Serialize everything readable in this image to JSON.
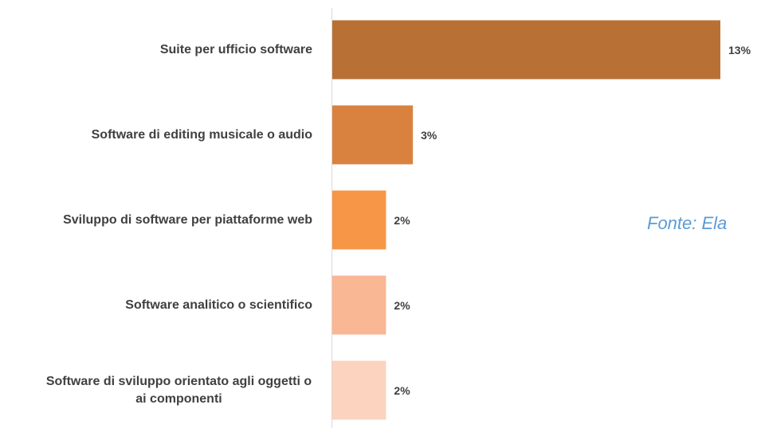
{
  "chart_data": {
    "type": "bar",
    "orientation": "horizontal",
    "categories": [
      "Suite per ufficio software",
      "Software di editing musicale o audio",
      "Sviluppo di software per piattaforme web",
      "Software analitico o scientifico",
      "Software di sviluppo orientato agli oggetti o ai componenti"
    ],
    "values": [
      13,
      2.7,
      1.8,
      1.8,
      1.8
    ],
    "value_labels": [
      "13%",
      "3%",
      "2%",
      "2%",
      "2%"
    ],
    "colors": [
      "#b87035",
      "#d9823f",
      "#f79646",
      "#f9b793",
      "#fbd3be"
    ],
    "xlim": [
      0,
      13
    ],
    "annotation": "Fonte: Ela"
  }
}
